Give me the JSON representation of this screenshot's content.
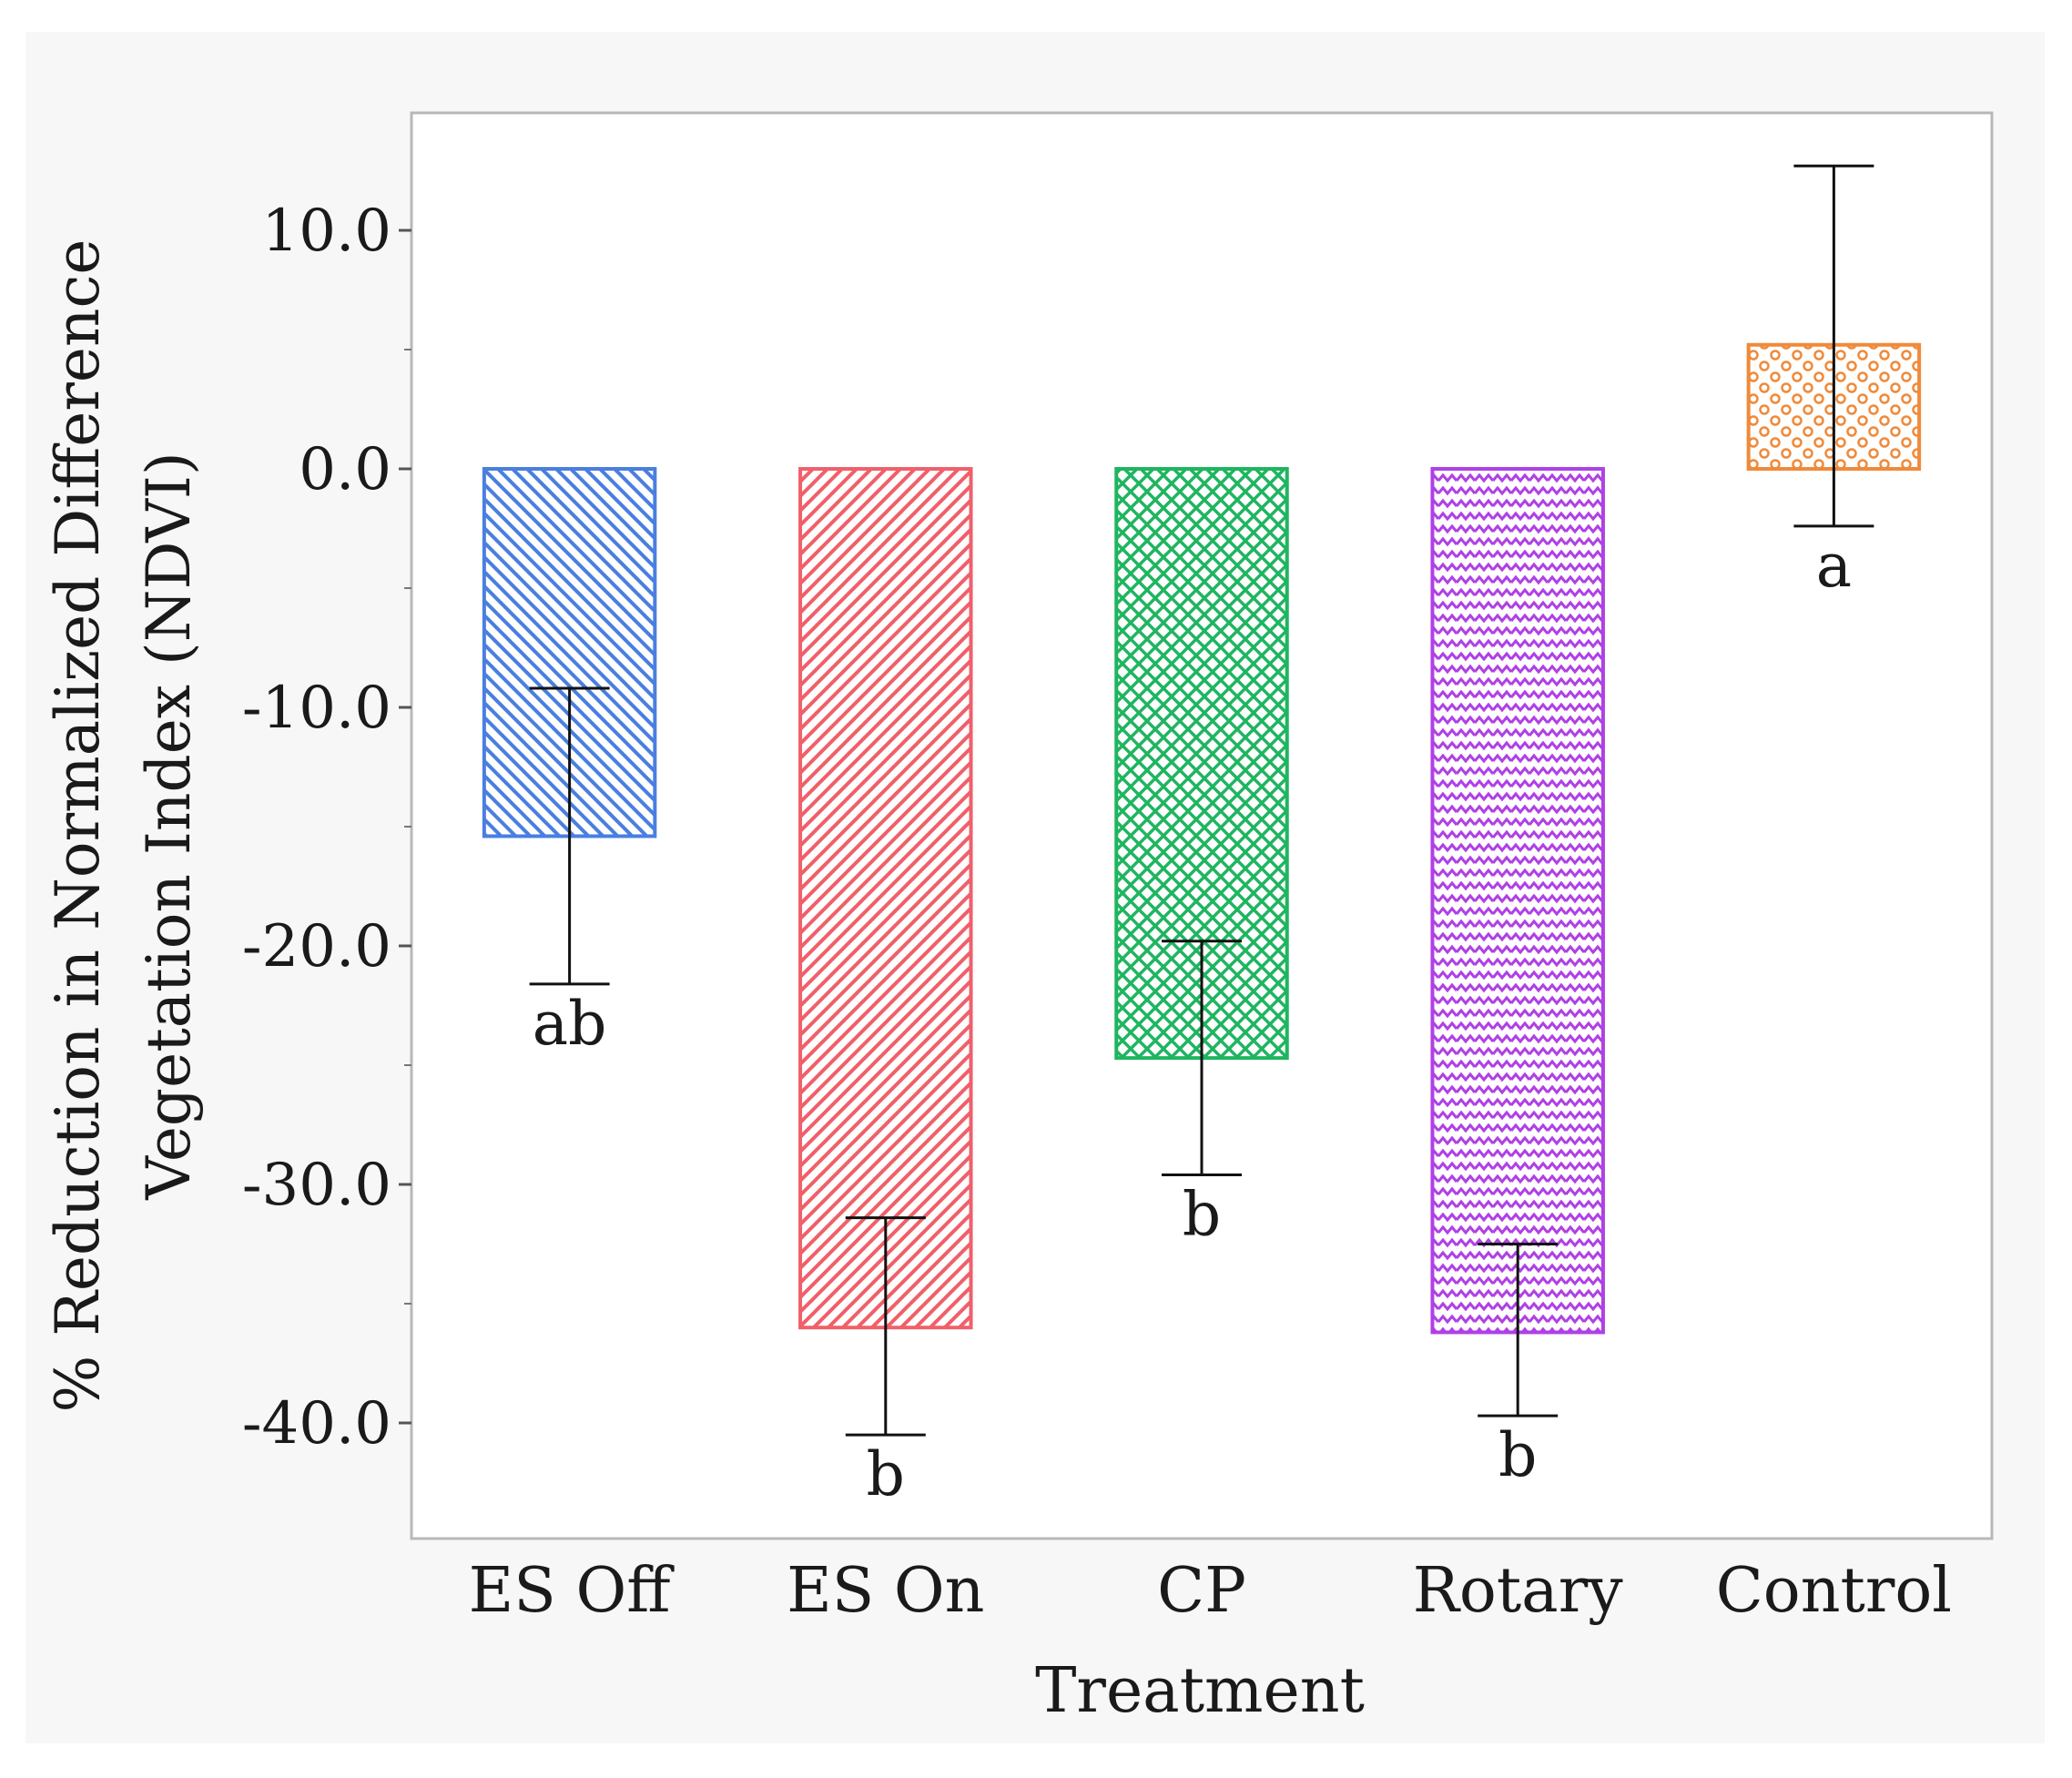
{
  "chart_data": {
    "type": "bar",
    "title": "",
    "xlabel": "Treatment",
    "ylabel_lines": [
      "% Reduction in Normalized Difference",
      "Vegetation Index (NDVI)"
    ],
    "ylim": [
      -45.0,
      15.0
    ],
    "yticks": [
      10.0,
      0.0,
      -10.0,
      -20.0,
      -30.0,
      -40.0
    ],
    "ytick_labels": [
      "10.0",
      "0.0",
      "-10.0",
      "-20.0",
      "-30.0",
      "-40.0"
    ],
    "categories": [
      "ES Off",
      "ES On",
      "CP",
      "Rotary",
      "Control"
    ],
    "values": [
      -15.4,
      -36.0,
      -24.7,
      -36.2,
      5.2
    ],
    "error_upper": [
      -9.2,
      -31.4,
      -19.8,
      -32.5,
      12.7
    ],
    "error_lower": [
      -21.6,
      -40.5,
      -29.6,
      -39.7,
      -2.4
    ],
    "group_letters": [
      "ab",
      "b",
      "b",
      "b",
      "a"
    ],
    "colors": [
      "#4a7fe0",
      "#f0606a",
      "#1fb560",
      "#b040e6",
      "#f08a3a"
    ],
    "patterns": [
      "diagonal-back",
      "diagonal-forward",
      "crosshatch",
      "zigzag",
      "circles"
    ],
    "grid": false,
    "legend": "none"
  }
}
